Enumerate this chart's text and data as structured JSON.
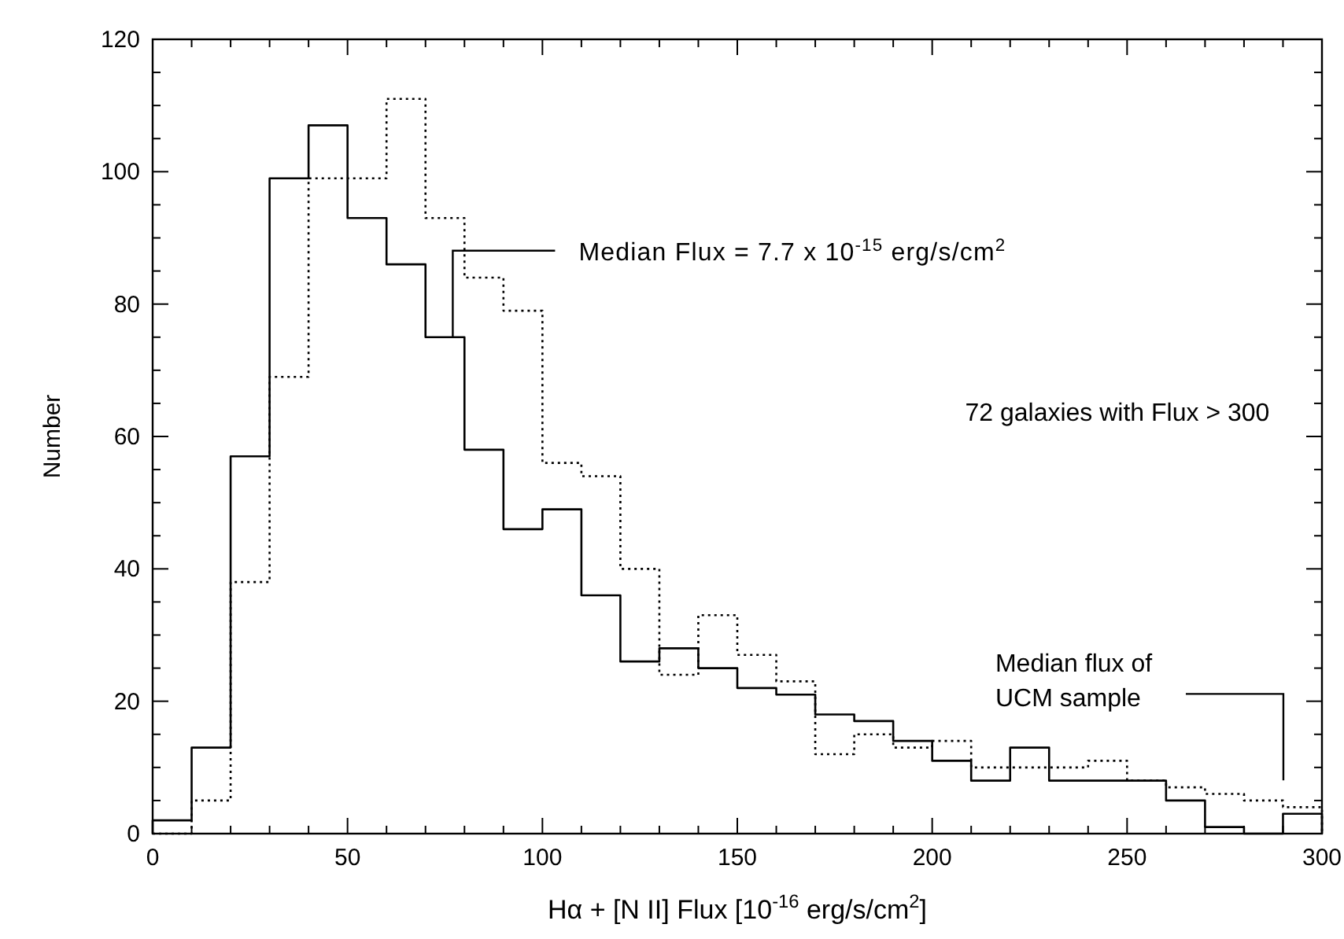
{
  "chart_data": {
    "type": "histogram",
    "xlabel": "Hα + [N II] Flux [10$^{-16}$ erg/s/cm$^{2}$]",
    "ylabel": "Number",
    "bins": [
      0,
      10,
      20,
      30,
      40,
      50,
      60,
      70,
      80,
      90,
      100,
      110,
      120,
      130,
      140,
      150,
      160,
      170,
      180,
      190,
      200,
      210,
      220,
      230,
      240,
      250,
      260,
      270,
      280,
      290,
      300
    ],
    "series": [
      {
        "color": "#000000",
        "line_style": "solid",
        "values": [
          2,
          13,
          57,
          99,
          107,
          93,
          86,
          75,
          58,
          46,
          49,
          36,
          26,
          28,
          25,
          22,
          21,
          18,
          17,
          14,
          11,
          8,
          13,
          8,
          8,
          8,
          5,
          1,
          0,
          3
        ]
      },
      {
        "color": "#000000",
        "line_style": "dotted",
        "values": [
          0,
          5,
          38,
          69,
          99,
          99,
          111,
          93,
          84,
          79,
          56,
          54,
          40,
          24,
          33,
          27,
          23,
          12,
          15,
          13,
          14,
          10,
          10,
          10,
          11,
          8,
          7,
          6,
          5,
          4
        ]
      }
    ],
    "xlim": [
      0,
      300
    ],
    "xticks": [
      0,
      {
        "value": 10,
        "label": null
      },
      {
        "value": 20,
        "label": null
      },
      {
        "value": 30,
        "label": null
      },
      {
        "value": 40,
        "label": null
      },
      50,
      {
        "value": 60,
        "label": null
      },
      {
        "value": 70,
        "label": null
      },
      {
        "value": 80,
        "label": null
      },
      {
        "value": 90,
        "label": null
      },
      100,
      {
        "value": 110,
        "label": null
      },
      {
        "value": 120,
        "label": null
      },
      {
        "value": 130,
        "label": null
      },
      {
        "value": 140,
        "label": null
      },
      150,
      {
        "value": 160,
        "label": null
      },
      {
        "value": 170,
        "label": null
      },
      {
        "value": 180,
        "label": null
      },
      {
        "value": 190,
        "label": null
      },
      200,
      {
        "value": 210,
        "label": null
      },
      {
        "value": 220,
        "label": null
      },
      {
        "value": 230,
        "label": null
      },
      {
        "value": 240,
        "label": null
      },
      250,
      {
        "value": 260,
        "label": null
      },
      {
        "value": 270,
        "label": null
      },
      {
        "value": 280,
        "label": null
      },
      {
        "value": 290,
        "label": null
      },
      300
    ],
    "ylim": [
      0,
      120
    ],
    "yticks": [
      0,
      {
        "value": 5,
        "label": null
      },
      {
        "value": 10,
        "label": null
      },
      {
        "value": 15,
        "label": null
      },
      20,
      {
        "value": 25,
        "label": null
      },
      {
        "value": 30,
        "label": null
      },
      {
        "value": 35,
        "label": null
      },
      40,
      {
        "value": 45,
        "label": null
      },
      {
        "value": 50,
        "label": null
      },
      {
        "value": 55,
        "label": null
      },
      60,
      {
        "value": 65,
        "label": null
      },
      {
        "value": 70,
        "label": null
      },
      {
        "value": 75,
        "label": null
      },
      80,
      {
        "value": 85,
        "label": null
      },
      {
        "value": 90,
        "label": null
      },
      {
        "value": 95,
        "label": null
      },
      100,
      {
        "value": 105,
        "label": null
      },
      {
        "value": 110,
        "label": null
      },
      {
        "value": 115,
        "label": null
      },
      120
    ],
    "annotations": [
      {
        "text": "Median Flux = 7.7 x 10$^{-15}$ erg/s/cm$^{2}$",
        "x": 77,
        "y": 75
      },
      "72 galaxies with Flux > 300",
      "Median flux of\nUCM sample"
    ]
  }
}
